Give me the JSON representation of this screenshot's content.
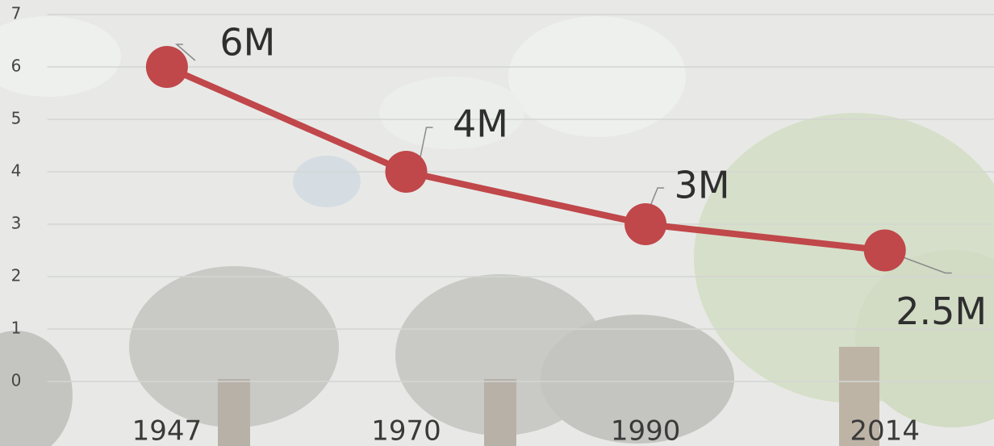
{
  "chart_data": {
    "type": "line",
    "categories": [
      "1947",
      "1970",
      "1990",
      "2014"
    ],
    "values": [
      6,
      4,
      3,
      2.5
    ],
    "value_labels": [
      "6M",
      "4M",
      "3M",
      "2.5M"
    ],
    "color": "#c0474a",
    "ylim": [
      0,
      7
    ],
    "yticks": [
      0,
      1,
      2,
      3,
      4,
      5,
      6,
      7
    ],
    "grid": true
  }
}
